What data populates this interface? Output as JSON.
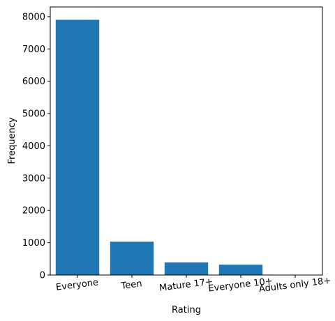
{
  "chart_data": {
    "type": "bar",
    "title": "",
    "xlabel": "Rating",
    "ylabel": "Frequency",
    "categories": [
      "Everyone",
      "Teen",
      "Mature 17+",
      "Everyone 10+",
      "Adults only 18+"
    ],
    "values": [
      7903,
      1036,
      393,
      322,
      3
    ],
    "ylim": [
      0,
      8300
    ],
    "yticks": [
      0,
      1000,
      2000,
      3000,
      4000,
      5000,
      6000,
      7000,
      8000
    ],
    "grid": false,
    "xtick_rotation_deg": -7,
    "bar_color": "#1f77b4"
  }
}
